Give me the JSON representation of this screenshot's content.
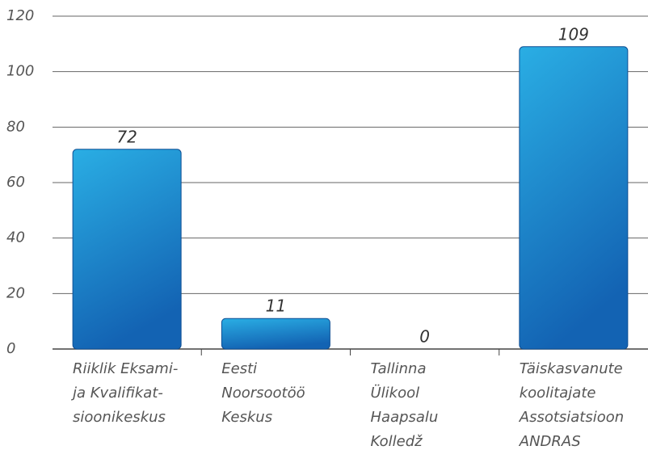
{
  "chart_data": {
    "type": "bar",
    "categories": [
      [
        "Riiklik Eksami-",
        "ja Kvalifikat-",
        "sioonikeskus"
      ],
      [
        "Eesti",
        "Noorsootöö",
        "Keskus"
      ],
      [
        "Tallinna",
        "Ülikool",
        "Haapsalu",
        "Kolledž"
      ],
      [
        "Täiskasvanute",
        "koolitajate",
        "Assotsiatsioon",
        "ANDRAS"
      ]
    ],
    "values": [
      72,
      11,
      0,
      109
    ],
    "color": "#1e88d4",
    "ylim": [
      0,
      120
    ],
    "yticks": [
      0,
      20,
      40,
      60,
      80,
      100,
      120
    ],
    "grid": true
  }
}
